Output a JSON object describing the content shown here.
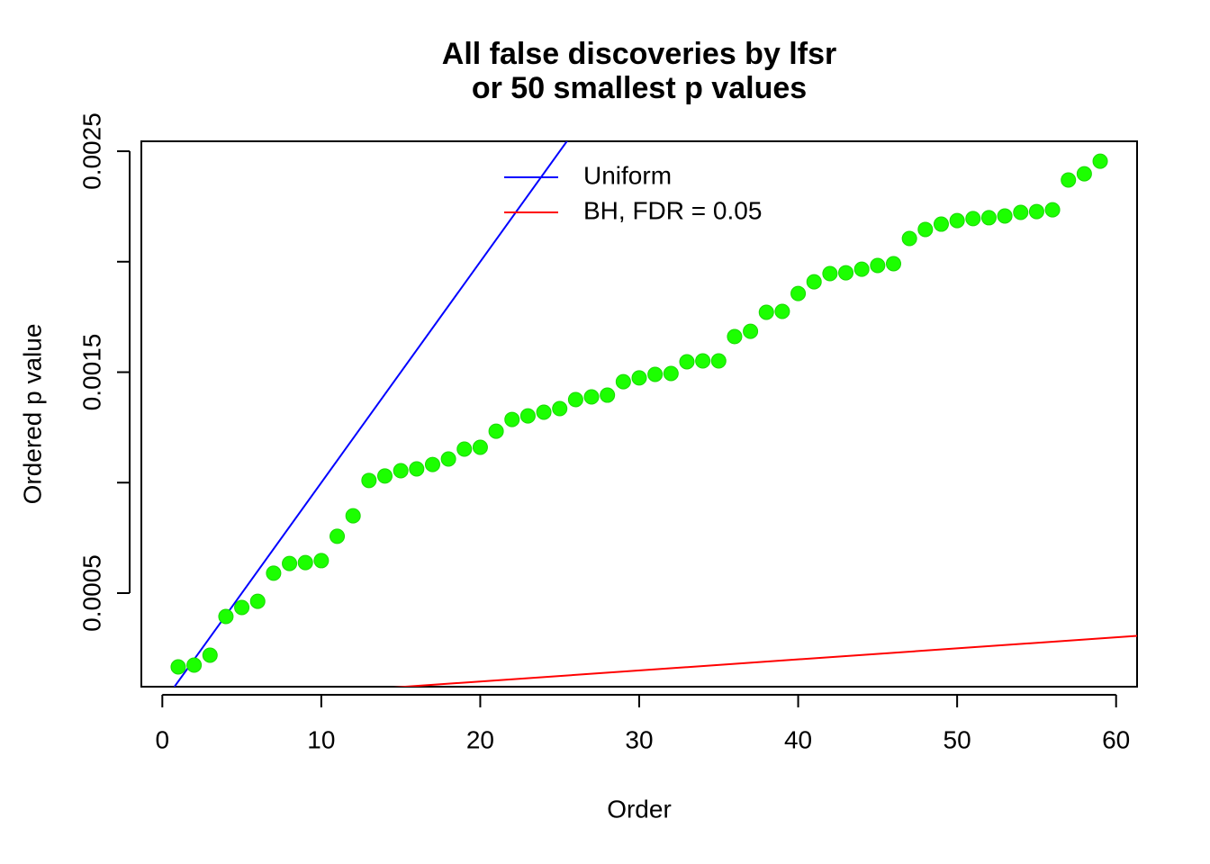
{
  "chart_data": {
    "type": "scatter",
    "title": [
      "All false discoveries by lfsr",
      "or 50 smallest p values"
    ],
    "xlabel": "Order",
    "ylabel": "Ordered p value",
    "x": [
      1,
      2,
      3,
      4,
      5,
      6,
      7,
      8,
      9,
      10,
      11,
      12,
      13,
      14,
      15,
      16,
      17,
      18,
      19,
      20,
      21,
      22,
      23,
      24,
      25,
      26,
      27,
      28,
      29,
      30,
      31,
      32,
      33,
      34,
      35,
      36,
      37,
      38,
      39,
      40,
      41,
      42,
      43,
      44,
      45,
      46,
      47,
      48,
      49,
      50,
      51,
      52,
      53,
      54,
      55,
      56,
      57,
      58,
      59
    ],
    "values": [
      0.000166,
      0.000174,
      0.000219,
      0.000394,
      0.000435,
      0.000463,
      0.00059,
      0.000634,
      0.000638,
      0.000647,
      0.000757,
      0.00085,
      0.00101,
      0.00103,
      0.001054,
      0.001062,
      0.001082,
      0.001107,
      0.001152,
      0.00116,
      0.001233,
      0.001286,
      0.001302,
      0.001319,
      0.001335,
      0.001376,
      0.001388,
      0.001396,
      0.001457,
      0.001474,
      0.00149,
      0.001494,
      0.001547,
      0.001551,
      0.001551,
      0.001661,
      0.001685,
      0.001771,
      0.001775,
      0.001856,
      0.001909,
      0.001946,
      0.00195,
      0.001966,
      0.001983,
      0.001991,
      0.002105,
      0.002146,
      0.00217,
      0.002186,
      0.002195,
      0.002199,
      0.002207,
      0.002223,
      0.002227,
      0.002235,
      0.00237,
      0.002398,
      0.002455
    ],
    "color": "#1cff00",
    "lines": [
      {
        "name": "Uniform",
        "color": "#0000ff",
        "slope": 0.0001,
        "intercept": 0
      },
      {
        "name": "BH, FDR = 0.05",
        "color": "#ff0000",
        "slope": 5e-06,
        "intercept": 0
      }
    ],
    "legend": "top",
    "xlim": [
      -1.32,
      61.32
    ],
    "xticks": [
      0,
      10,
      20,
      30,
      40,
      50,
      60
    ],
    "ylim": [
      7.64e-05,
      0.002545
    ],
    "yticks": [
      0.0005,
      0.0015,
      0.0025
    ],
    "yticks_minor": [
      0.001,
      0.002
    ]
  }
}
